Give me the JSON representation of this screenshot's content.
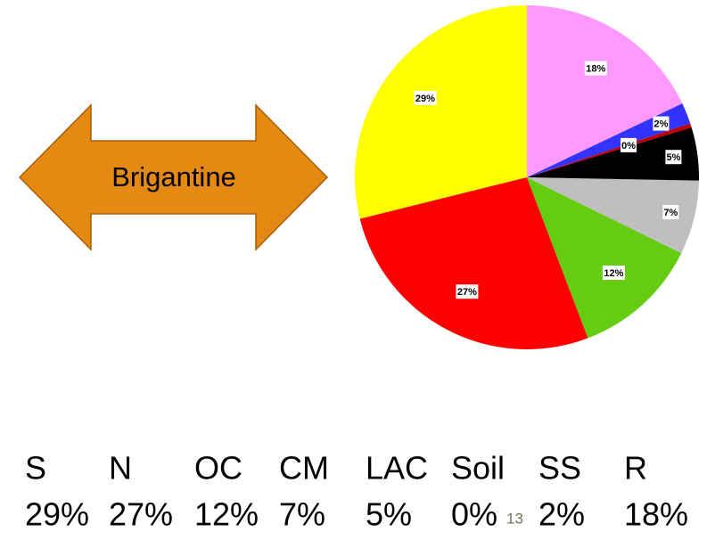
{
  "chart_data": {
    "type": "pie",
    "categories": [
      "S",
      "N",
      "OC",
      "CM",
      "LAC",
      "Soil",
      "SS",
      "R"
    ],
    "values": [
      29,
      27,
      12,
      7,
      5,
      0.4,
      2,
      18
    ],
    "value_labels": [
      "29%",
      "27%",
      "12%",
      "7%",
      "5%",
      "0%",
      "2%",
      "18%"
    ],
    "colors": [
      "#ffff00",
      "#ff0000",
      "#66cc11",
      "#bfbfbf",
      "#000000",
      "#c00000",
      "#3333ff",
      "#ff99ff"
    ]
  },
  "arrow_label": "Brigantine",
  "slide_number": "13"
}
